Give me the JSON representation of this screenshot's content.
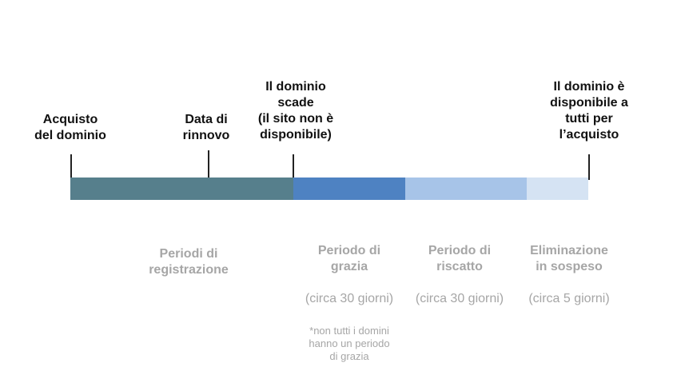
{
  "milestones": {
    "purchase": "Acquisto\ndel dominio",
    "renewal": "Data di\nrinnovo",
    "expiry": "Il dominio\nscade\n(il sito non è\ndisponibile)",
    "available": "Il dominio è\ndisponibile a\ntutti per\nl’acquisto"
  },
  "phases": {
    "registration": {
      "name": "Periodi di\nregistrazione"
    },
    "grace": {
      "name": "Periodo di\ngrazia",
      "duration": "(circa 30 giorni)",
      "note": "*non tutti i domini\nhanno un periodo\ndi grazia"
    },
    "redemption": {
      "name": "Periodo di\nriscatto",
      "duration": "(circa 30 giorni)"
    },
    "pending_delete": {
      "name": "Eliminazione\nin sospeso",
      "duration": "(circa 5 giorni)"
    }
  },
  "colors": {
    "registration": "#567f8c",
    "grace": "#4e82c2",
    "redemption": "#a7c4e8",
    "pending_delete": "#d5e3f3"
  }
}
